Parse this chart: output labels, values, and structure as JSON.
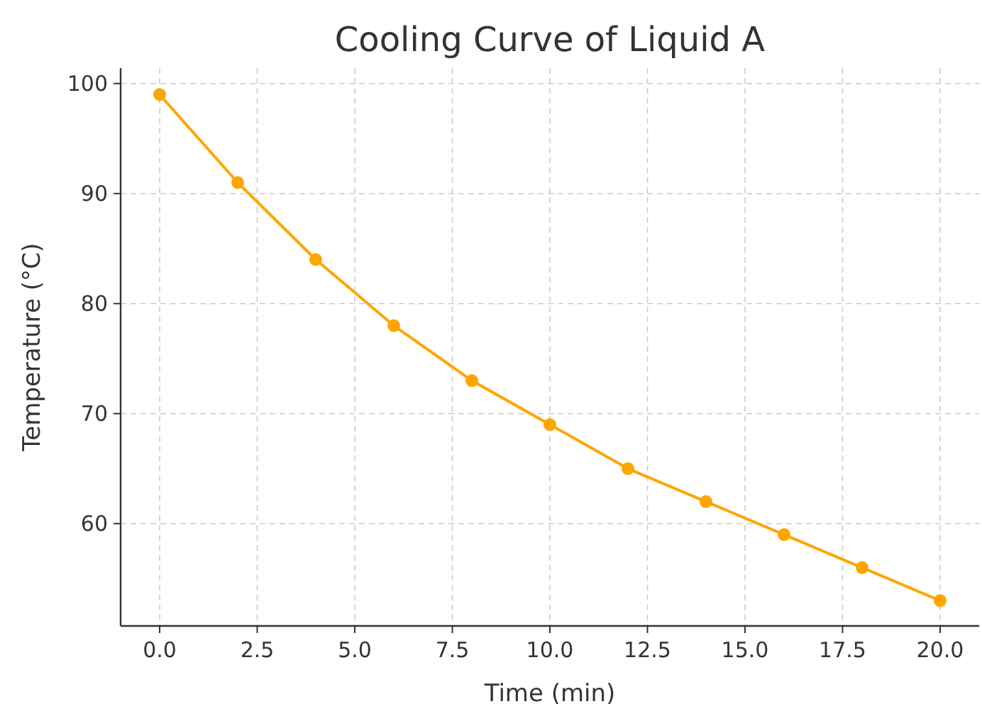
{
  "chart_data": {
    "type": "line",
    "title": "Cooling Curve of Liquid A",
    "xlabel": "Time (min)",
    "ylabel": "Temperature (°C)",
    "x": [
      0,
      2,
      4,
      6,
      8,
      10,
      12,
      14,
      16,
      18,
      20
    ],
    "series": [
      {
        "color": "#ffa500",
        "values": [
          99,
          91,
          84,
          78,
          73,
          69,
          65,
          62,
          59,
          56,
          53
        ]
      }
    ],
    "xlim": [
      -1,
      21
    ],
    "ylim": [
      50.7,
      101.4
    ],
    "xticks": [
      {
        "value": 0,
        "label": "0.0"
      },
      {
        "value": 2.5,
        "label": "2.5"
      },
      {
        "value": 5,
        "label": "5.0"
      },
      {
        "value": 7.5,
        "label": "7.5"
      },
      {
        "value": 10,
        "label": "10.0"
      },
      {
        "value": 12.5,
        "label": "12.5"
      },
      {
        "value": 15,
        "label": "15.0"
      },
      {
        "value": 17.5,
        "label": "17.5"
      },
      {
        "value": 20,
        "label": "20.0"
      }
    ],
    "yticks": [
      60,
      70,
      80,
      90,
      100
    ],
    "grid": true,
    "marker": "circle",
    "line_style": "solid"
  }
}
